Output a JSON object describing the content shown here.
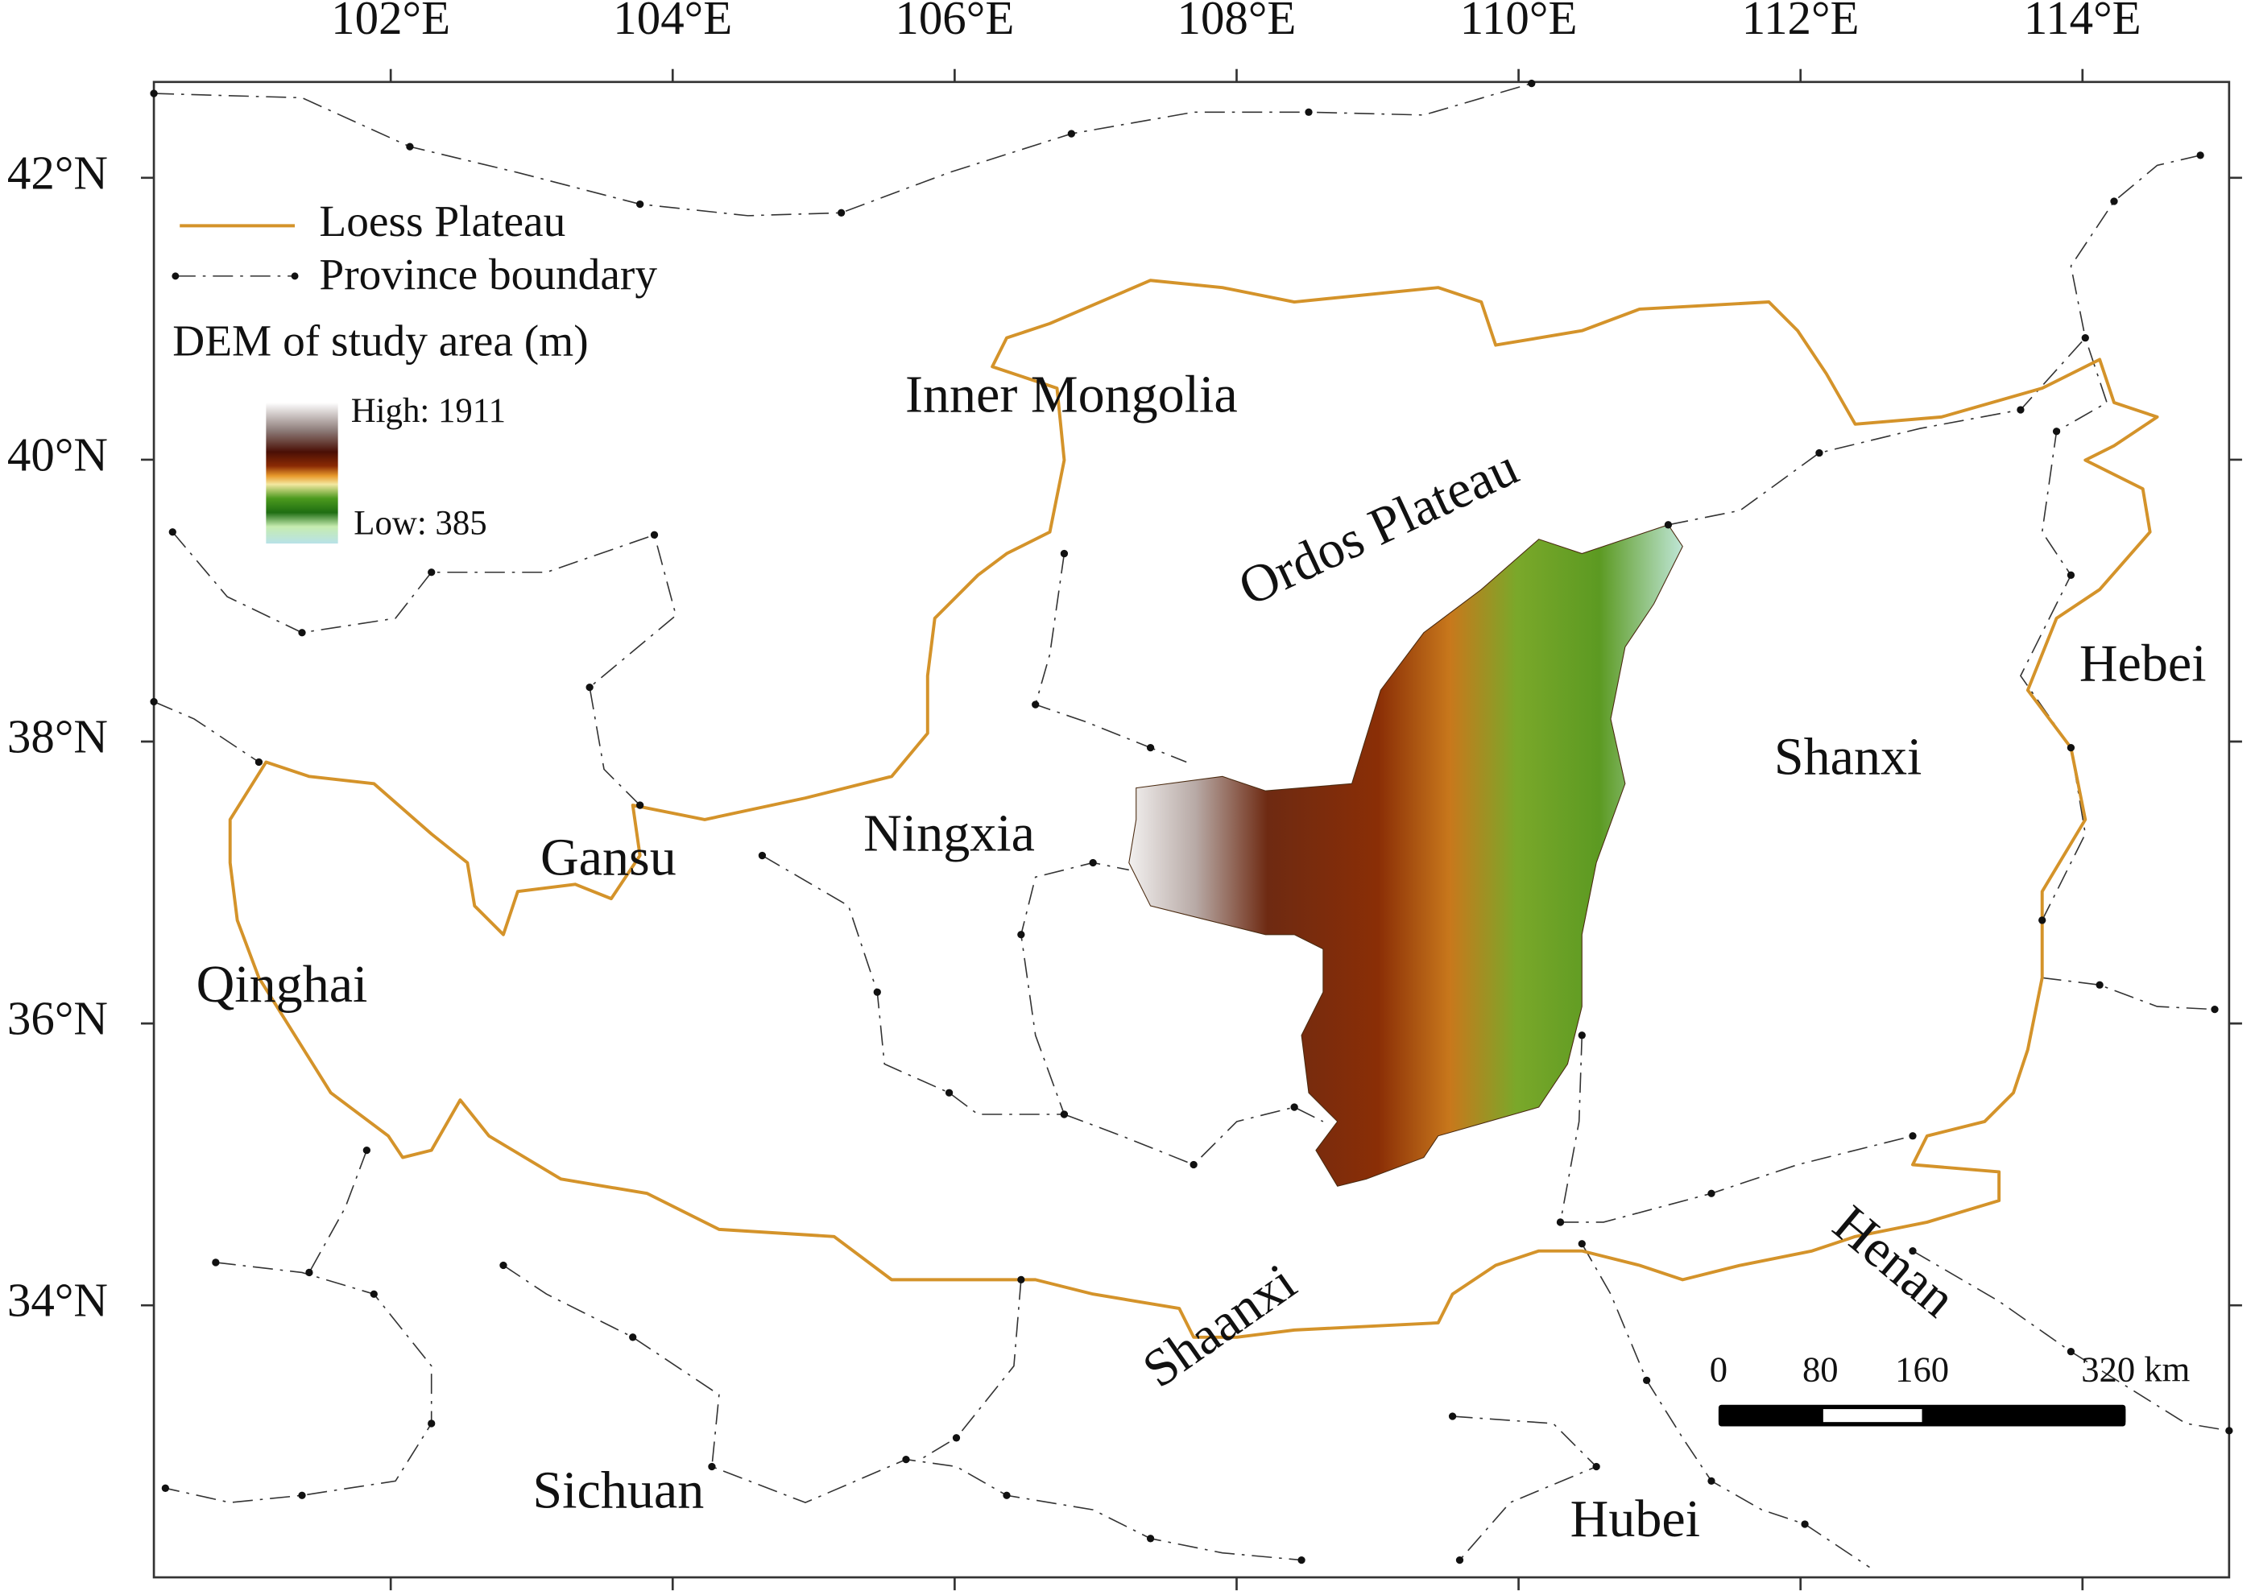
{
  "map": {
    "xlim": [
      100.32,
      115.04
    ],
    "ylim": [
      32.07,
      42.68
    ],
    "lon_ticks": [
      {
        "value": 102,
        "label": "102°E"
      },
      {
        "value": 104,
        "label": "104°E"
      },
      {
        "value": 106,
        "label": "106°E"
      },
      {
        "value": 108,
        "label": "108°E"
      },
      {
        "value": 110,
        "label": "110°E"
      },
      {
        "value": 112,
        "label": "112°E"
      },
      {
        "value": 114,
        "label": "114°E"
      }
    ],
    "lat_ticks": [
      {
        "value": 34,
        "label": "34°N"
      },
      {
        "value": 36,
        "label": "36°N"
      },
      {
        "value": 38,
        "label": "38°N"
      },
      {
        "value": 40,
        "label": "40°N"
      },
      {
        "value": 42,
        "label": "42°N"
      }
    ],
    "legend": {
      "loess": "Loess Plateau",
      "boundary": "Province boundary",
      "dem_title": "DEM of study area (m)",
      "dem_high": "High: 1911",
      "dem_low": "Low: 385"
    },
    "regions": [
      "Inner Mongolia",
      "Ordos Plateau",
      "Hebei",
      "Shanxi",
      "Gansu",
      "Ningxia",
      "Qinghai",
      "Shaanxi",
      "Henan",
      "Sichuan",
      "Hubei"
    ],
    "scale_bar": [
      0,
      80,
      160,
      {
        "value": 320,
        "label": "320 km"
      }
    ]
  }
}
